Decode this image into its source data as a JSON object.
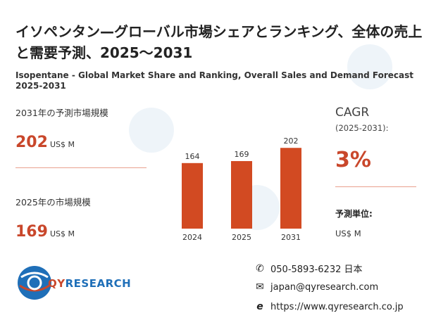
{
  "title_ja": "イソペンタン—グローバル市場シェアとランキング、全体の売上と需要予測、2025～2031",
  "title_en": "Isopentane - Global Market Share and Ranking, Overall Sales and Demand Forecast 2025-2031",
  "metric_2031": {
    "label": "2031年の予測市場規模",
    "value": "202",
    "unit": "US$ M"
  },
  "metric_2025": {
    "label": "2025年の市場規模",
    "value": "169",
    "unit": "US$ M"
  },
  "cagr": {
    "label": "CAGR",
    "range": "(2025-2031):",
    "value": "3%"
  },
  "forecast_unit": {
    "label": "予測単位:",
    "value": "US$ M"
  },
  "brand": {
    "name": "QYRESEARCH",
    "accent": "#c9472b",
    "blue": "#1f6fb8"
  },
  "contacts": [
    {
      "icon": "phone-icon",
      "text": "050-5893-6232 日本"
    },
    {
      "icon": "mail-icon",
      "text": "japan@qyresearch.com"
    },
    {
      "icon": "web-icon",
      "text": "https://www.qyresearch.co.jp"
    }
  ],
  "chart_data": {
    "type": "bar",
    "categories": [
      "2024",
      "2025",
      "2031"
    ],
    "values": [
      164,
      169,
      202
    ],
    "data_labels": [
      "164",
      "169",
      "202"
    ],
    "ylim": [
      0,
      220
    ],
    "bar_color": "#d24a22"
  }
}
